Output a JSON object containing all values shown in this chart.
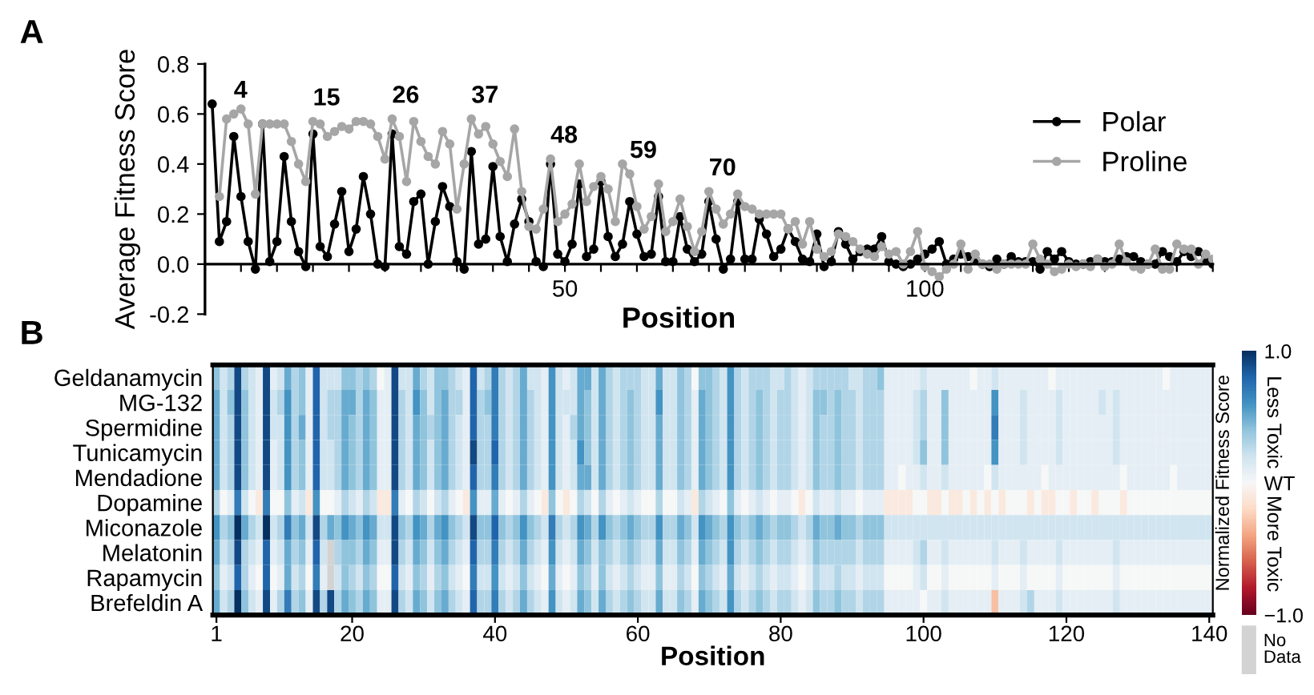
{
  "chart_data": [
    {
      "type": "line",
      "title": "A",
      "xlabel": "Position",
      "ylabel": "Average Fitness Score",
      "xlim": [
        0,
        140
      ],
      "ylim": [
        -0.2,
        0.8
      ],
      "yticks": [
        -0.2,
        {
          "value": 0,
          "label": "0.0"
        },
        0.2,
        0.4,
        0.6,
        0.8
      ],
      "xticks": [
        {
          "value": 5,
          "label": null
        },
        {
          "value": 10,
          "label": null
        },
        {
          "value": 15,
          "label": null
        },
        {
          "value": 20,
          "label": null
        },
        {
          "value": 25,
          "label": null
        },
        {
          "value": 30,
          "label": null
        },
        {
          "value": 35,
          "label": null
        },
        {
          "value": 40,
          "label": null
        },
        {
          "value": 45,
          "label": null
        },
        50,
        {
          "value": 55,
          "label": null
        },
        {
          "value": 60,
          "label": null
        },
        {
          "value": 65,
          "label": null
        },
        {
          "value": 70,
          "label": null
        },
        {
          "value": 75,
          "label": null
        },
        {
          "value": 80,
          "label": null
        },
        {
          "value": 85,
          "label": null
        },
        {
          "value": 90,
          "label": null
        },
        {
          "value": 95,
          "label": null
        },
        100,
        {
          "value": 105,
          "label": null
        },
        {
          "value": 110,
          "label": null
        },
        {
          "value": 115,
          "label": null
        },
        {
          "value": 120,
          "label": null
        },
        {
          "value": 125,
          "label": null
        },
        {
          "value": 130,
          "label": null
        },
        {
          "value": 135,
          "label": null
        },
        {
          "value": 140,
          "label": null
        }
      ],
      "x": [
        1,
        2,
        3,
        4,
        5,
        6,
        7,
        8,
        9,
        10,
        11,
        12,
        13,
        14,
        15,
        16,
        17,
        18,
        19,
        20,
        21,
        22,
        23,
        24,
        25,
        26,
        27,
        28,
        29,
        30,
        31,
        32,
        33,
        34,
        35,
        36,
        37,
        38,
        39,
        40,
        41,
        42,
        43,
        44,
        45,
        46,
        47,
        48,
        49,
        50,
        51,
        52,
        53,
        54,
        55,
        56,
        57,
        58,
        59,
        60,
        61,
        62,
        63,
        64,
        65,
        66,
        67,
        68,
        69,
        70,
        71,
        72,
        73,
        74,
        75,
        76,
        77,
        78,
        79,
        80,
        81,
        82,
        83,
        84,
        85,
        86,
        87,
        88,
        89,
        90,
        91,
        92,
        93,
        94,
        95,
        96,
        97,
        98,
        99,
        100,
        101,
        102,
        103,
        104,
        105,
        106,
        107,
        108,
        109,
        110,
        111,
        112,
        113,
        114,
        115,
        116,
        117,
        118,
        119,
        120,
        121,
        122,
        123,
        124,
        125,
        126,
        127,
        128,
        129,
        130,
        131,
        132,
        133,
        134,
        135,
        136,
        137,
        138,
        139,
        140
      ],
      "marker": "circle",
      "line_style": "solid",
      "legend": "right",
      "grid": false,
      "series": [
        {
          "name": "Polar",
          "color": "#000000",
          "values": [
            0.64,
            0.09,
            0.17,
            0.51,
            0.27,
            0.09,
            -0.02,
            0.56,
            0.01,
            0.09,
            0.43,
            0.17,
            0.05,
            -0.01,
            0.52,
            0.07,
            0.03,
            0.16,
            0.29,
            0.05,
            0.14,
            0.35,
            0.2,
            0.0,
            -0.01,
            0.52,
            0.07,
            0.04,
            0.25,
            0.28,
            0.0,
            0.17,
            0.31,
            0.23,
            0.01,
            -0.02,
            0.45,
            0.08,
            0.1,
            0.39,
            0.11,
            0.01,
            0.16,
            0.26,
            0.17,
            0.01,
            -0.01,
            0.4,
            0.04,
            0.01,
            0.08,
            0.32,
            0.03,
            0.06,
            0.33,
            0.11,
            0.03,
            0.08,
            0.25,
            0.12,
            0.03,
            0.04,
            0.27,
            0.01,
            0.01,
            0.19,
            0.06,
            0.01,
            0.04,
            0.25,
            0.1,
            -0.02,
            0.02,
            0.25,
            0.02,
            0.02,
            0.18,
            0.12,
            0.03,
            0.06,
            0.14,
            0.09,
            0.02,
            0.01,
            0.12,
            -0.01,
            0.01,
            0.13,
            0.08,
            0.02,
            0.05,
            0.06,
            0.06,
            0.11,
            0.01,
            0.0,
            -0.01,
            0.0,
            0.02,
            0.04,
            0.06,
            0.09,
            0.0,
            0.02,
            0.04,
            0.03,
            0.02,
            0.0,
            -0.01,
            0.02,
            0.0,
            0.03,
            0.01,
            0.01,
            0.01,
            -0.02,
            0.05,
            0.02,
            0.05,
            0.01,
            0.0,
            0.0,
            0.01,
            0.02,
            0.01,
            0.01,
            0.02,
            0.03,
            0.03,
            0.01,
            0.0,
            0.0,
            0.05,
            0.03,
            0.01,
            0.05,
            0.03,
            0.05,
            0.02,
            0.0
          ]
        },
        {
          "name": "Proline",
          "color": "#a6a6a6",
          "values": [
            null,
            0.27,
            0.58,
            0.6,
            0.62,
            0.56,
            0.28,
            0.56,
            0.56,
            0.56,
            0.56,
            0.49,
            0.4,
            0.33,
            0.57,
            0.56,
            0.51,
            0.53,
            0.55,
            0.54,
            0.57,
            0.57,
            0.56,
            0.51,
            0.42,
            0.58,
            0.51,
            0.33,
            0.57,
            0.49,
            0.43,
            0.4,
            0.53,
            0.48,
            0.22,
            0.4,
            0.58,
            0.52,
            0.55,
            0.48,
            0.41,
            0.35,
            0.54,
            0.29,
            0.15,
            0.14,
            0.22,
            0.42,
            0.17,
            0.2,
            0.24,
            0.4,
            0.25,
            0.31,
            0.35,
            0.3,
            0.17,
            0.4,
            0.36,
            0.23,
            0.14,
            0.19,
            0.32,
            0.13,
            0.17,
            0.26,
            0.15,
            0.05,
            0.13,
            0.29,
            0.22,
            0.16,
            0.2,
            0.28,
            0.23,
            0.22,
            0.2,
            0.2,
            0.2,
            0.2,
            0.14,
            0.17,
            0.08,
            0.17,
            0.06,
            0.03,
            0.05,
            0.12,
            0.11,
            0.09,
            0.06,
            0.04,
            0.03,
            0.07,
            0.04,
            0.05,
            0.0,
            0.05,
            0.13,
            -0.01,
            -0.03,
            -0.05,
            -0.02,
            0.0,
            0.08,
            -0.02,
            0.04,
            0.0,
            0.0,
            -0.02,
            0.0,
            0.0,
            0.0,
            0.0,
            0.08,
            0.02,
            0.0,
            -0.03,
            -0.02,
            0.0,
            -0.01,
            0.0,
            -0.01,
            0.02,
            -0.01,
            0.0,
            0.08,
            0.01,
            -0.01,
            -0.02,
            0.0,
            0.06,
            -0.02,
            -0.02,
            0.08,
            0.06,
            0.06,
            0.0,
            0.04,
            0.02
          ]
        }
      ],
      "annotations": [
        {
          "text": "4",
          "x": 4,
          "y": 0.6
        },
        {
          "text": "15",
          "x": 15,
          "y": 0.57
        },
        {
          "text": "26",
          "x": 26,
          "y": 0.58
        },
        {
          "text": "37",
          "x": 37,
          "y": 0.58
        },
        {
          "text": "48",
          "x": 48,
          "y": 0.42
        },
        {
          "text": "59",
          "x": 59,
          "y": 0.36
        },
        {
          "text": "70",
          "x": 70,
          "y": 0.29
        }
      ]
    },
    {
      "type": "heatmap",
      "title": "B",
      "xlabel": "Position",
      "clabel": "Normalized Fitness Score",
      "clim": [
        -1,
        1
      ],
      "cticks": [
        {
          "value": -1,
          "label": "−1.0"
        },
        {
          "value": 0,
          "label": "WT"
        },
        {
          "value": 1,
          "label": "1.0"
        }
      ],
      "xlim": [
        0.5,
        140.5
      ],
      "xticks": [
        1,
        20,
        40,
        60,
        80,
        100,
        120,
        140
      ],
      "x": [
        1,
        2,
        3,
        4,
        5,
        6,
        7,
        8,
        9,
        10,
        11,
        12,
        13,
        14,
        15,
        16,
        17,
        18,
        19,
        20,
        21,
        22,
        23,
        24,
        25,
        26,
        27,
        28,
        29,
        30,
        31,
        32,
        33,
        34,
        35,
        36,
        37,
        38,
        39,
        40,
        41,
        42,
        43,
        44,
        45,
        46,
        47,
        48,
        49,
        50,
        51,
        52,
        53,
        54,
        55,
        56,
        57,
        58,
        59,
        60,
        61,
        62,
        63,
        64,
        65,
        66,
        67,
        68,
        69,
        70,
        71,
        72,
        73,
        74,
        75,
        76,
        77,
        78,
        79,
        80,
        81,
        82,
        83,
        84,
        85,
        86,
        87,
        88,
        89,
        90,
        91,
        92,
        93,
        94,
        95,
        96,
        97,
        98,
        99,
        100,
        101,
        102,
        103,
        104,
        105,
        106,
        107,
        108,
        109,
        110,
        111,
        112,
        113,
        114,
        115,
        116,
        117,
        118,
        119,
        120,
        121,
        122,
        123,
        124,
        125,
        126,
        127,
        128,
        129,
        130,
        131,
        132,
        133,
        134,
        135,
        136,
        137,
        138,
        139,
        140
      ],
      "y_categories": [
        "Geldanamycin",
        "MG-132",
        "Spermidine",
        "Tunicamycin",
        "Mendadione",
        "Dopamine",
        "Miconazole",
        "Melatonin",
        "Rapamycin",
        "Brefeldin A"
      ],
      "annotations": [
        "Less Toxic",
        "More Toxic",
        "No Data"
      ],
      "cells": [
        [
          0.4,
          0.2,
          0.3,
          0.9,
          0.3,
          0.2,
          0.1,
          0.9,
          0.1,
          0.2,
          0.5,
          0.3,
          0.4,
          0.1,
          0.8,
          0.2,
          0.2,
          0.2,
          0.4,
          0.4,
          0.3,
          0.4,
          0.3,
          0.0,
          0.1,
          0.9,
          0.2,
          0.2,
          0.5,
          0.3,
          0.2,
          0.4,
          0.4,
          0.3,
          0.2,
          0.1,
          0.8,
          0.2,
          0.3,
          0.7,
          0.3,
          0.2,
          0.3,
          0.5,
          0.2,
          0.2,
          0.1,
          0.6,
          0.2,
          0.1,
          0.2,
          0.5,
          0.5,
          0.2,
          0.5,
          0.3,
          0.2,
          0.3,
          0.3,
          0.3,
          0.2,
          0.2,
          0.5,
          0.2,
          0.2,
          0.4,
          0.3,
          0.0,
          0.4,
          0.4,
          0.3,
          0.2,
          0.6,
          0.3,
          0.2,
          0.3,
          0.3,
          0.3,
          0.2,
          0.2,
          0.3,
          0.2,
          0.1,
          0.2,
          0.3,
          0.3,
          0.3,
          0.3,
          0.3,
          0.2,
          0.2,
          0.3,
          0.3,
          0.4,
          0.1,
          0.1,
          0.1,
          0.1,
          0.1,
          0.2,
          0.1,
          0.1,
          0.1,
          0.1,
          0.1,
          0.1,
          0.0,
          0.1,
          0.1,
          0.2,
          0.1,
          0.1,
          0.1,
          0.1,
          0.1,
          0.1,
          0.1,
          0.0,
          0.1,
          0.1,
          0.1,
          0.1,
          0.1,
          0.1,
          0.1,
          0.1,
          0.1,
          0.1,
          0.1,
          0.1,
          0.1,
          0.1,
          0.1,
          0.0,
          0.1,
          0.1,
          0.1,
          0.1,
          0.1,
          0.1
        ],
        [
          0.5,
          0.2,
          0.4,
          0.9,
          0.4,
          0.2,
          0.1,
          0.9,
          0.2,
          0.3,
          0.6,
          0.3,
          0.4,
          0.1,
          0.8,
          0.2,
          0.3,
          0.3,
          0.5,
          0.5,
          0.3,
          0.5,
          0.4,
          0.1,
          0.1,
          0.9,
          0.3,
          0.2,
          0.6,
          0.4,
          0.2,
          0.4,
          0.5,
          0.3,
          0.3,
          0.1,
          0.8,
          0.3,
          0.4,
          0.7,
          0.3,
          0.2,
          0.3,
          0.5,
          0.3,
          0.2,
          0.1,
          0.6,
          0.2,
          0.2,
          0.2,
          0.5,
          0.4,
          0.2,
          0.5,
          0.3,
          0.2,
          0.3,
          0.4,
          0.3,
          0.2,
          0.2,
          0.6,
          0.2,
          0.2,
          0.4,
          0.3,
          0.1,
          0.5,
          0.4,
          0.3,
          0.2,
          0.6,
          0.3,
          0.2,
          0.3,
          0.4,
          0.3,
          0.2,
          0.3,
          0.3,
          0.2,
          0.1,
          0.2,
          0.4,
          0.4,
          0.3,
          0.4,
          0.3,
          0.3,
          0.2,
          0.3,
          0.3,
          0.3,
          0.1,
          0.1,
          0.1,
          0.1,
          0.2,
          0.3,
          0.1,
          0.1,
          0.4,
          0.1,
          0.1,
          0.1,
          0.1,
          0.1,
          0.1,
          0.6,
          0.1,
          0.1,
          0.1,
          0.2,
          0.1,
          0.1,
          0.1,
          0.1,
          0.2,
          0.1,
          0.1,
          0.1,
          0.1,
          0.1,
          0.2,
          0.1,
          0.2,
          0.1,
          0.1,
          0.1,
          0.1,
          0.1,
          0.1,
          0.1,
          0.1,
          0.1,
          0.1,
          0.1,
          0.1,
          0.1
        ],
        [
          0.5,
          0.2,
          0.3,
          0.9,
          0.4,
          0.2,
          0.1,
          0.9,
          0.2,
          0.2,
          0.6,
          0.3,
          0.5,
          0.1,
          0.8,
          0.2,
          0.3,
          0.3,
          0.5,
          0.4,
          0.3,
          0.5,
          0.4,
          0.1,
          0.1,
          0.9,
          0.3,
          0.2,
          0.5,
          0.4,
          0.3,
          0.4,
          0.5,
          0.3,
          0.2,
          0.1,
          0.8,
          0.3,
          0.3,
          0.7,
          0.3,
          0.2,
          0.3,
          0.5,
          0.3,
          0.2,
          0.1,
          0.6,
          0.2,
          0.1,
          0.3,
          0.5,
          0.4,
          0.2,
          0.5,
          0.3,
          0.2,
          0.3,
          0.4,
          0.3,
          0.2,
          0.2,
          0.5,
          0.2,
          0.2,
          0.4,
          0.3,
          0.1,
          0.5,
          0.4,
          0.3,
          0.2,
          0.6,
          0.3,
          0.2,
          0.3,
          0.4,
          0.3,
          0.2,
          0.3,
          0.3,
          0.2,
          0.1,
          0.2,
          0.4,
          0.3,
          0.3,
          0.4,
          0.3,
          0.3,
          0.2,
          0.3,
          0.3,
          0.3,
          0.1,
          0.1,
          0.1,
          0.1,
          0.2,
          0.3,
          0.1,
          0.1,
          0.4,
          0.1,
          0.1,
          0.1,
          0.1,
          0.1,
          0.1,
          0.7,
          0.1,
          0.1,
          0.1,
          0.2,
          0.1,
          0.1,
          0.1,
          0.1,
          0.2,
          0.1,
          0.1,
          0.1,
          0.1,
          0.1,
          0.1,
          0.1,
          0.2,
          0.1,
          0.1,
          0.1,
          0.1,
          0.1,
          0.1,
          0.1,
          0.1,
          0.1,
          0.1,
          0.1,
          0.1,
          0.1
        ],
        [
          0.5,
          0.2,
          0.3,
          0.9,
          0.4,
          0.2,
          0.1,
          0.9,
          0.1,
          0.2,
          0.6,
          0.3,
          0.4,
          0.1,
          0.8,
          0.2,
          0.2,
          0.3,
          0.5,
          0.4,
          0.3,
          0.5,
          0.4,
          0.1,
          0.1,
          0.9,
          0.3,
          0.2,
          0.5,
          0.4,
          0.2,
          0.4,
          0.5,
          0.3,
          0.2,
          0.1,
          0.9,
          0.3,
          0.3,
          0.8,
          0.3,
          0.2,
          0.3,
          0.5,
          0.3,
          0.2,
          0.1,
          0.6,
          0.2,
          0.1,
          0.2,
          0.6,
          0.4,
          0.2,
          0.5,
          0.3,
          0.2,
          0.3,
          0.4,
          0.3,
          0.2,
          0.2,
          0.5,
          0.2,
          0.2,
          0.4,
          0.3,
          0.1,
          0.5,
          0.4,
          0.3,
          0.2,
          0.6,
          0.3,
          0.2,
          0.3,
          0.4,
          0.3,
          0.2,
          0.3,
          0.3,
          0.2,
          0.1,
          0.2,
          0.4,
          0.3,
          0.3,
          0.4,
          0.3,
          0.3,
          0.2,
          0.3,
          0.3,
          0.3,
          0.1,
          0.1,
          0.1,
          0.1,
          0.2,
          0.4,
          0.1,
          0.1,
          0.4,
          0.1,
          0.1,
          0.1,
          0.1,
          0.1,
          0.1,
          0.6,
          0.1,
          0.1,
          0.1,
          0.2,
          0.1,
          0.1,
          0.1,
          0.1,
          0.2,
          0.1,
          0.1,
          0.1,
          0.1,
          0.1,
          0.1,
          0.1,
          0.2,
          0.1,
          0.1,
          0.1,
          0.1,
          0.1,
          0.1,
          0.1,
          0.1,
          0.1,
          0.1,
          0.1,
          0.1,
          0.1
        ],
        [
          0.5,
          0.2,
          0.3,
          0.9,
          0.4,
          0.2,
          0.1,
          0.9,
          0.1,
          0.2,
          0.6,
          0.3,
          0.4,
          0.1,
          0.8,
          0.2,
          0.2,
          0.3,
          0.5,
          0.4,
          0.3,
          0.5,
          0.4,
          0.1,
          0.1,
          0.9,
          0.3,
          0.2,
          0.5,
          0.4,
          0.2,
          0.4,
          0.5,
          0.3,
          0.2,
          0.1,
          0.8,
          0.3,
          0.3,
          0.7,
          0.3,
          0.2,
          0.3,
          0.5,
          0.3,
          0.2,
          0.1,
          0.6,
          0.2,
          0.1,
          0.2,
          0.5,
          0.5,
          0.2,
          0.5,
          0.3,
          0.2,
          0.3,
          0.4,
          0.3,
          0.2,
          0.2,
          0.5,
          0.2,
          0.2,
          0.4,
          0.3,
          0.1,
          0.5,
          0.4,
          0.3,
          0.2,
          0.6,
          0.3,
          0.2,
          0.3,
          0.4,
          0.3,
          0.2,
          0.3,
          0.3,
          0.2,
          0.1,
          0.2,
          0.4,
          0.3,
          0.3,
          0.4,
          0.3,
          0.3,
          0.2,
          0.3,
          0.3,
          0.3,
          0.1,
          0.1,
          0.0,
          0.1,
          0.1,
          0.2,
          0.1,
          0.1,
          0.2,
          0.1,
          0.1,
          0.1,
          0.1,
          0.1,
          0.0,
          0.2,
          0.1,
          0.1,
          0.1,
          0.1,
          0.1,
          0.1,
          0.0,
          0.1,
          0.1,
          0.1,
          0.1,
          0.1,
          0.1,
          0.1,
          0.1,
          0.1,
          0.1,
          0.0,
          0.1,
          0.1,
          0.1,
          0.1,
          0.1,
          0.1,
          0.0,
          0.1,
          0.1,
          0.1,
          0.1,
          0.1
        ],
        [
          0.3,
          0.0,
          0.1,
          0.7,
          0.2,
          0.0,
          -0.1,
          0.7,
          0.0,
          0.0,
          0.4,
          0.1,
          0.2,
          -0.1,
          0.6,
          0.0,
          0.0,
          0.1,
          0.3,
          0.2,
          0.1,
          0.3,
          0.2,
          -0.1,
          -0.1,
          0.7,
          0.1,
          0.0,
          0.3,
          0.2,
          0.0,
          0.2,
          0.3,
          0.1,
          0.0,
          -0.1,
          0.6,
          0.1,
          0.1,
          0.5,
          0.1,
          0.0,
          0.1,
          0.3,
          0.1,
          0.0,
          -0.1,
          0.4,
          0.0,
          -0.1,
          0.0,
          0.3,
          0.2,
          0.0,
          0.3,
          0.1,
          0.0,
          0.1,
          0.2,
          0.1,
          0.0,
          0.0,
          0.3,
          0.0,
          0.0,
          0.2,
          0.1,
          -0.1,
          0.3,
          0.2,
          0.1,
          0.0,
          0.4,
          0.1,
          0.0,
          0.1,
          0.2,
          0.1,
          0.0,
          0.1,
          0.1,
          0.0,
          -0.1,
          0.0,
          0.2,
          0.1,
          0.1,
          0.2,
          0.1,
          0.1,
          0.0,
          0.1,
          0.1,
          0.1,
          -0.1,
          -0.1,
          -0.1,
          -0.1,
          0.0,
          0.0,
          -0.1,
          -0.1,
          0.0,
          -0.1,
          -0.1,
          0.0,
          -0.1,
          0.0,
          -0.1,
          0.0,
          -0.1,
          0.0,
          0.0,
          0.0,
          -0.1,
          0.0,
          -0.1,
          -0.1,
          0.0,
          0.0,
          -0.1,
          0.0,
          0.0,
          -0.1,
          0.0,
          0.0,
          0.0,
          -0.1,
          0.0,
          0.0,
          0.0,
          0.0,
          0.0,
          0.0,
          0.0,
          0.0,
          0.0,
          0.0,
          0.0,
          0.0
        ],
        [
          0.6,
          0.3,
          0.4,
          1.0,
          0.5,
          0.3,
          0.2,
          1.0,
          0.2,
          0.3,
          0.7,
          0.4,
          0.5,
          0.2,
          0.9,
          0.3,
          0.5,
          0.4,
          0.6,
          0.5,
          0.4,
          0.6,
          0.5,
          0.2,
          0.2,
          0.9,
          0.4,
          0.3,
          0.6,
          0.5,
          0.3,
          0.5,
          0.6,
          0.4,
          0.3,
          0.2,
          0.9,
          0.4,
          0.4,
          0.8,
          0.4,
          0.3,
          0.4,
          0.6,
          0.4,
          0.3,
          0.2,
          0.7,
          0.3,
          0.2,
          0.3,
          0.6,
          0.5,
          0.3,
          0.6,
          0.4,
          0.3,
          0.4,
          0.5,
          0.4,
          0.3,
          0.3,
          0.6,
          0.3,
          0.3,
          0.5,
          0.4,
          0.2,
          0.6,
          0.5,
          0.4,
          0.3,
          0.6,
          0.4,
          0.3,
          0.4,
          0.5,
          0.4,
          0.3,
          0.4,
          0.4,
          0.3,
          0.2,
          0.3,
          0.5,
          0.4,
          0.4,
          0.5,
          0.4,
          0.4,
          0.3,
          0.4,
          0.4,
          0.4,
          0.2,
          0.2,
          0.2,
          0.2,
          0.2,
          0.2,
          0.2,
          0.2,
          0.2,
          0.2,
          0.2,
          0.2,
          0.2,
          0.2,
          0.2,
          0.2,
          0.2,
          0.2,
          0.2,
          0.2,
          0.2,
          0.2,
          0.2,
          0.2,
          0.2,
          0.2,
          0.2,
          0.2,
          0.2,
          0.2,
          0.2,
          0.2,
          0.2,
          0.2,
          0.2,
          0.2,
          0.2,
          0.2,
          0.2,
          0.2,
          0.2,
          0.2,
          0.2,
          0.2,
          0.2,
          0.2
        ],
        [
          0.5,
          0.2,
          0.3,
          0.9,
          0.3,
          0.2,
          0.1,
          0.8,
          0.1,
          0.2,
          0.5,
          0.3,
          0.4,
          0.1,
          0.8,
          0.2,
          null,
          0.3,
          0.4,
          0.4,
          0.3,
          0.5,
          0.4,
          0.1,
          0.1,
          0.9,
          0.3,
          0.2,
          0.5,
          0.4,
          0.2,
          0.4,
          0.5,
          0.3,
          0.2,
          0.1,
          0.8,
          0.3,
          0.3,
          0.7,
          0.3,
          0.2,
          0.3,
          0.5,
          0.3,
          0.2,
          0.1,
          0.6,
          0.2,
          0.1,
          0.2,
          0.5,
          0.4,
          0.2,
          0.4,
          0.3,
          0.2,
          0.3,
          0.4,
          0.3,
          0.2,
          0.2,
          0.5,
          0.2,
          0.2,
          0.4,
          0.3,
          0.1,
          0.5,
          0.4,
          0.3,
          0.2,
          0.6,
          0.3,
          0.2,
          0.3,
          0.4,
          0.3,
          0.2,
          0.3,
          0.3,
          0.2,
          0.1,
          0.2,
          0.4,
          0.3,
          0.3,
          0.3,
          0.3,
          0.3,
          0.2,
          0.3,
          0.3,
          0.3,
          0.1,
          0.1,
          0.1,
          0.1,
          0.2,
          0.3,
          0.1,
          0.1,
          0.2,
          0.1,
          0.1,
          0.1,
          0.1,
          0.1,
          0.1,
          0.2,
          0.1,
          0.1,
          0.1,
          0.2,
          0.1,
          0.1,
          0.1,
          0.1,
          0.2,
          0.1,
          0.1,
          0.1,
          0.1,
          0.1,
          0.1,
          0.1,
          0.2,
          0.1,
          0.1,
          0.1,
          0.1,
          0.1,
          0.1,
          0.1,
          0.1,
          0.1,
          0.1,
          0.1,
          0.1,
          0.1
        ],
        [
          0.4,
          0.1,
          0.2,
          0.8,
          0.3,
          0.1,
          0.0,
          0.8,
          0.0,
          0.1,
          0.5,
          0.2,
          0.3,
          0.0,
          0.7,
          0.1,
          null,
          0.2,
          0.4,
          0.3,
          0.2,
          0.4,
          0.3,
          0.0,
          0.0,
          0.8,
          0.2,
          0.1,
          0.4,
          0.3,
          0.1,
          0.3,
          0.4,
          0.2,
          0.1,
          0.0,
          0.7,
          0.2,
          0.2,
          0.6,
          0.2,
          0.1,
          0.2,
          0.4,
          0.2,
          0.1,
          0.0,
          0.5,
          0.1,
          0.0,
          0.1,
          0.4,
          0.3,
          0.1,
          0.4,
          0.2,
          0.1,
          0.2,
          0.3,
          0.2,
          0.1,
          0.1,
          0.4,
          0.1,
          0.1,
          0.3,
          0.2,
          0.0,
          0.4,
          0.3,
          0.2,
          0.1,
          0.5,
          0.2,
          0.1,
          0.2,
          0.3,
          0.2,
          0.1,
          0.2,
          0.2,
          0.1,
          0.0,
          0.1,
          0.3,
          0.2,
          0.2,
          0.3,
          0.2,
          0.2,
          0.1,
          0.2,
          0.2,
          0.2,
          0.0,
          0.0,
          0.0,
          0.0,
          0.1,
          0.2,
          0.0,
          0.0,
          0.1,
          0.0,
          0.0,
          0.0,
          0.0,
          0.0,
          0.0,
          0.1,
          0.0,
          0.0,
          0.0,
          0.1,
          0.0,
          0.0,
          0.0,
          0.0,
          0.1,
          0.0,
          0.0,
          0.0,
          0.0,
          0.0,
          0.0,
          0.0,
          0.1,
          0.0,
          0.0,
          0.0,
          0.0,
          0.0,
          0.0,
          0.0,
          0.0,
          0.0,
          0.0,
          0.0,
          0.0,
          0.0
        ],
        [
          0.5,
          0.2,
          0.3,
          1.0,
          0.4,
          0.2,
          0.1,
          0.9,
          0.1,
          0.3,
          0.7,
          0.3,
          0.4,
          0.1,
          0.9,
          0.3,
          0.9,
          0.3,
          0.5,
          0.4,
          0.3,
          0.5,
          0.4,
          0.1,
          0.1,
          0.9,
          0.3,
          0.2,
          0.5,
          0.4,
          0.2,
          0.4,
          0.5,
          0.3,
          0.2,
          0.1,
          0.8,
          0.3,
          0.3,
          0.7,
          0.3,
          0.2,
          0.3,
          0.5,
          0.3,
          0.2,
          0.1,
          0.6,
          0.2,
          0.1,
          0.2,
          0.5,
          0.4,
          0.2,
          0.5,
          0.3,
          0.2,
          0.3,
          0.4,
          0.3,
          0.2,
          0.2,
          0.5,
          0.2,
          0.2,
          0.4,
          0.3,
          0.1,
          0.5,
          0.4,
          0.3,
          0.2,
          0.6,
          0.3,
          0.2,
          0.3,
          0.4,
          0.3,
          0.2,
          0.3,
          0.3,
          0.2,
          0.1,
          0.2,
          0.4,
          0.3,
          0.3,
          0.4,
          0.3,
          0.3,
          0.2,
          0.3,
          0.3,
          0.3,
          0.1,
          0.1,
          0.1,
          0.1,
          0.1,
          0.0,
          0.1,
          0.1,
          0.2,
          0.1,
          0.1,
          0.1,
          0.1,
          0.1,
          0.1,
          -0.3,
          0.1,
          0.1,
          0.1,
          0.2,
          0.3,
          0.1,
          0.1,
          0.1,
          0.2,
          0.1,
          0.1,
          0.1,
          0.1,
          0.1,
          0.1,
          0.1,
          0.2,
          0.1,
          0.1,
          0.1,
          0.1,
          0.1,
          0.1,
          0.1,
          0.1,
          0.1,
          0.1,
          0.1,
          0.1,
          0.1
        ]
      ]
    }
  ]
}
